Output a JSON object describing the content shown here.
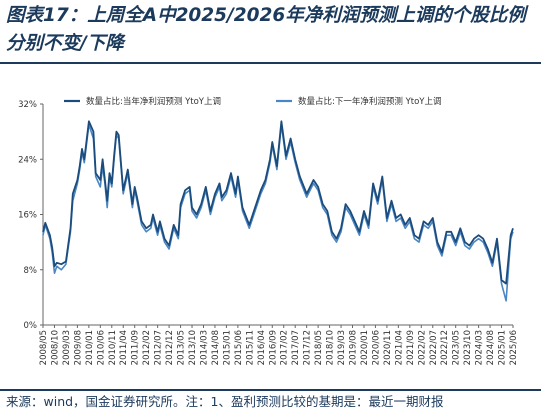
{
  "title": "图表17：上周全A中2025/2026年净利润预测上调的个股比例分别不变/下降",
  "source": "来源：wind，国金证券研究所。注：1、盈利预测比较的基期是：最近一期财报",
  "colors": {
    "series1": "#1c4c7c",
    "series2": "#4a86c4",
    "text": "#1b3a5c",
    "axis": "#666666"
  },
  "chart_data": {
    "type": "line",
    "ylim": [
      0,
      32
    ],
    "yticks": [
      "0%",
      "8%",
      "16%",
      "24%",
      "32%"
    ],
    "y_tick_values": [
      0,
      8,
      16,
      24,
      32
    ],
    "grid": false,
    "legend_position": "top",
    "x_tick_labels": [
      "2008/05",
      "2008/10",
      "2009/03",
      "2009/08",
      "2010/01",
      "2010/06",
      "2010/11",
      "2011/04",
      "2011/09",
      "2012/02",
      "2012/07",
      "2012/12",
      "2013/05",
      "2013/10",
      "2014/03",
      "2014/08",
      "2015/01",
      "2015/06",
      "2015/11",
      "2016/04",
      "2016/09",
      "2017/02",
      "2017/07",
      "2017/12",
      "2018/05",
      "2018/10",
      "2019/03",
      "2019/08",
      "2020/01",
      "2020/06",
      "2020/11",
      "2021/04",
      "2021/09",
      "2022/02",
      "2022/07",
      "2022/12",
      "2023/05",
      "2023/10",
      "2024/03",
      "2024/08",
      "2025/01",
      "2025/06"
    ],
    "series": [
      {
        "name": "数量占比:当年净利润预测 YtoY上调",
        "x": [
          "2008/05",
          "2008/06",
          "2008/08",
          "2008/09",
          "2008/10",
          "2008/11",
          "2009/01",
          "2009/03",
          "2009/05",
          "2009/06",
          "2009/08",
          "2009/09",
          "2009/10",
          "2009/11",
          "2010/01",
          "2010/03",
          "2010/04",
          "2010/06",
          "2010/07",
          "2010/08",
          "2010/09",
          "2010/10",
          "2010/11",
          "2010/12",
          "2011/01",
          "2011/02",
          "2011/04",
          "2011/06",
          "2011/08",
          "2011/09",
          "2011/10",
          "2011/12",
          "2012/02",
          "2012/04",
          "2012/05",
          "2012/07",
          "2012/08",
          "2012/10",
          "2012/12",
          "2013/02",
          "2013/04",
          "2013/05",
          "2013/07",
          "2013/09",
          "2013/10",
          "2013/12",
          "2014/02",
          "2014/04",
          "2014/06",
          "2014/08",
          "2014/10",
          "2014/11",
          "2015/01",
          "2015/03",
          "2015/05",
          "2015/06",
          "2015/08",
          "2015/11",
          "2016/02",
          "2016/04",
          "2016/06",
          "2016/08",
          "2016/09",
          "2016/11",
          "2017/01",
          "2017/03",
          "2017/05",
          "2017/07",
          "2017/09",
          "2017/12",
          "2018/03",
          "2018/05",
          "2018/07",
          "2018/09",
          "2018/11",
          "2019/01",
          "2019/03",
          "2019/05",
          "2019/07",
          "2019/09",
          "2019/11",
          "2020/01",
          "2020/03",
          "2020/05",
          "2020/07",
          "2020/09",
          "2020/11",
          "2021/01",
          "2021/03",
          "2021/05",
          "2021/07",
          "2021/09",
          "2021/11",
          "2022/01",
          "2022/03",
          "2022/05",
          "2022/07",
          "2022/09",
          "2022/11",
          "2023/01",
          "2023/03",
          "2023/05",
          "2023/07",
          "2023/09",
          "2023/11",
          "2024/01",
          "2024/03",
          "2024/05",
          "2024/07",
          "2024/09",
          "2024/11",
          "2025/01",
          "2025/03",
          "2025/05",
          "2025/06"
        ],
        "values": [
          13.5,
          14.8,
          13.0,
          11.2,
          8.5,
          9.0,
          8.8,
          9.2,
          14.0,
          19.0,
          21.0,
          23.0,
          25.5,
          24.0,
          29.5,
          28.0,
          22.0,
          21.0,
          24.0,
          21.0,
          18.0,
          22.0,
          20.5,
          24.5,
          28.0,
          27.5,
          19.5,
          22.5,
          17.5,
          20.0,
          18.5,
          15.0,
          14.0,
          14.5,
          16.0,
          13.5,
          15.0,
          12.5,
          11.5,
          14.5,
          13.0,
          17.5,
          19.5,
          20.0,
          17.0,
          16.0,
          17.5,
          20.0,
          16.5,
          19.0,
          20.5,
          18.5,
          19.5,
          22.0,
          19.0,
          21.5,
          17.0,
          14.5,
          17.5,
          19.5,
          21.0,
          24.0,
          26.5,
          23.0,
          29.5,
          24.5,
          27.0,
          24.0,
          21.5,
          19.0,
          21.0,
          20.0,
          17.5,
          16.5,
          13.5,
          12.5,
          14.0,
          17.5,
          16.5,
          15.0,
          13.5,
          16.5,
          14.5,
          20.5,
          18.0,
          21.5,
          15.5,
          18.0,
          15.5,
          16.0,
          14.5,
          15.5,
          13.0,
          12.5,
          15.0,
          14.5,
          15.5,
          12.0,
          10.5,
          13.5,
          13.5,
          12.0,
          14.0,
          12.0,
          11.5,
          12.5,
          13.0,
          12.5,
          11.0,
          9.0,
          12.5,
          6.5,
          6.0,
          13.0,
          14.0
        ]
      },
      {
        "name": "数量占比:下一年净利润预测 YtoY上调",
        "x": [
          "2008/05",
          "2008/06",
          "2008/08",
          "2008/09",
          "2008/10",
          "2008/11",
          "2009/01",
          "2009/03",
          "2009/05",
          "2009/06",
          "2009/08",
          "2009/09",
          "2009/10",
          "2009/11",
          "2010/01",
          "2010/03",
          "2010/04",
          "2010/06",
          "2010/07",
          "2010/08",
          "2010/09",
          "2010/10",
          "2010/11",
          "2010/12",
          "2011/01",
          "2011/02",
          "2011/04",
          "2011/06",
          "2011/08",
          "2011/09",
          "2011/10",
          "2011/12",
          "2012/02",
          "2012/04",
          "2012/05",
          "2012/07",
          "2012/08",
          "2012/10",
          "2012/12",
          "2013/02",
          "2013/04",
          "2013/05",
          "2013/07",
          "2013/09",
          "2013/10",
          "2013/12",
          "2014/02",
          "2014/04",
          "2014/06",
          "2014/08",
          "2014/10",
          "2014/11",
          "2015/01",
          "2015/03",
          "2015/05",
          "2015/06",
          "2015/08",
          "2015/11",
          "2016/02",
          "2016/04",
          "2016/06",
          "2016/08",
          "2016/09",
          "2016/11",
          "2017/01",
          "2017/03",
          "2017/05",
          "2017/07",
          "2017/09",
          "2017/12",
          "2018/03",
          "2018/05",
          "2018/07",
          "2018/09",
          "2018/11",
          "2019/01",
          "2019/03",
          "2019/05",
          "2019/07",
          "2019/09",
          "2019/11",
          "2020/01",
          "2020/03",
          "2020/05",
          "2020/07",
          "2020/09",
          "2020/11",
          "2021/01",
          "2021/03",
          "2021/05",
          "2021/07",
          "2021/09",
          "2021/11",
          "2022/01",
          "2022/03",
          "2022/05",
          "2022/07",
          "2022/09",
          "2022/11",
          "2023/01",
          "2023/03",
          "2023/05",
          "2023/07",
          "2023/09",
          "2023/11",
          "2024/01",
          "2024/03",
          "2024/05",
          "2024/07",
          "2024/09",
          "2024/11",
          "2025/01",
          "2025/03",
          "2025/05",
          "2025/06"
        ],
        "values": [
          13.0,
          14.5,
          12.5,
          10.5,
          7.5,
          8.5,
          8.0,
          8.8,
          13.5,
          18.0,
          20.5,
          22.5,
          25.0,
          23.5,
          29.0,
          27.0,
          21.5,
          20.0,
          23.0,
          20.5,
          17.0,
          21.5,
          20.0,
          24.0,
          27.5,
          27.0,
          19.0,
          22.0,
          17.0,
          19.5,
          18.0,
          14.5,
          13.5,
          14.0,
          15.5,
          13.0,
          14.5,
          12.0,
          11.0,
          14.0,
          12.5,
          17.0,
          19.0,
          19.5,
          16.5,
          15.5,
          17.0,
          19.5,
          16.0,
          18.5,
          20.0,
          18.0,
          19.0,
          21.5,
          18.5,
          21.0,
          16.5,
          14.0,
          17.0,
          19.0,
          20.5,
          23.5,
          26.0,
          22.5,
          29.0,
          24.0,
          26.5,
          23.5,
          21.0,
          18.5,
          20.5,
          19.5,
          17.0,
          16.0,
          13.0,
          12.0,
          13.5,
          17.0,
          16.0,
          14.5,
          13.0,
          16.0,
          14.0,
          20.0,
          17.5,
          21.0,
          15.0,
          17.5,
          15.0,
          15.5,
          14.0,
          15.0,
          12.5,
          12.0,
          14.5,
          14.0,
          15.0,
          11.5,
          10.0,
          13.0,
          13.0,
          11.5,
          13.5,
          11.5,
          11.0,
          12.0,
          12.5,
          12.0,
          10.5,
          8.5,
          12.0,
          6.0,
          3.5,
          12.5,
          13.5
        ]
      }
    ]
  }
}
